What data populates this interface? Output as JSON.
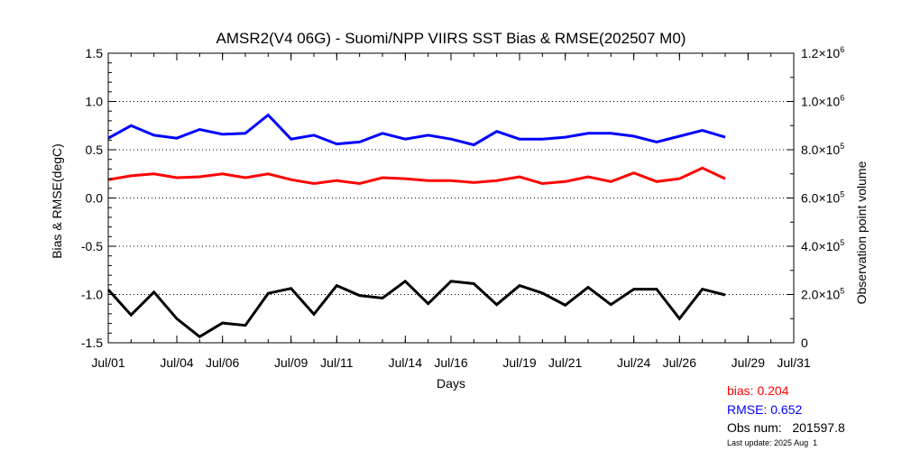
{
  "chart_data": {
    "type": "line",
    "title": "AMSR2(V4 06G) - Suomi/NPP VIIRS SST Bias & RMSE(202507 M0)",
    "xlabel": "Days",
    "ylabel": "Bias & RMSE(degC)",
    "y2label": "Observation point volume",
    "x_ticks": [
      "Jul/01",
      "Jul/04",
      "Jul/06",
      "Jul/09",
      "Jul/11",
      "Jul/14",
      "Jul/16",
      "Jul/19",
      "Jul/21",
      "Jul/24",
      "Jul/26",
      "Jul/29",
      "Jul/31"
    ],
    "x_days": [
      1,
      2,
      3,
      4,
      5,
      6,
      7,
      8,
      9,
      10,
      11,
      12,
      13,
      14,
      15,
      16,
      17,
      18,
      19,
      20,
      21,
      22,
      23,
      24,
      25,
      26,
      27,
      28
    ],
    "xlim": [
      1,
      31
    ],
    "ylim": [
      -1.5,
      1.5
    ],
    "y_ticks": [
      "1.5",
      "1.0",
      "0.5",
      "0.0",
      "-0.5",
      "-1.0",
      "-1.5"
    ],
    "y2lim": [
      0,
      1200000
    ],
    "y2_ticks": [
      {
        "mant": "0",
        "exp": ""
      },
      {
        "mant": "2.0×10",
        "exp": "5"
      },
      {
        "mant": "4.0×10",
        "exp": "5"
      },
      {
        "mant": "6.0×10",
        "exp": "5"
      },
      {
        "mant": "8.0×10",
        "exp": "5"
      },
      {
        "mant": "1.0×10",
        "exp": "6"
      },
      {
        "mant": "1.2×10",
        "exp": "6"
      }
    ],
    "grid": true,
    "series": [
      {
        "key": "rmse",
        "color": "#0000ff",
        "axis": "left",
        "values": [
          0.62,
          0.75,
          0.65,
          0.62,
          0.71,
          0.66,
          0.67,
          0.86,
          0.61,
          0.65,
          0.56,
          0.58,
          0.67,
          0.61,
          0.65,
          0.61,
          0.55,
          0.69,
          0.61,
          0.61,
          0.63,
          0.67,
          0.67,
          0.64,
          0.58,
          0.64,
          0.7,
          0.63
        ]
      },
      {
        "key": "bias",
        "color": "#ff0000",
        "axis": "left",
        "values": [
          0.19,
          0.23,
          0.25,
          0.21,
          0.22,
          0.25,
          0.21,
          0.25,
          0.19,
          0.15,
          0.18,
          0.15,
          0.21,
          0.2,
          0.18,
          0.18,
          0.16,
          0.18,
          0.22,
          0.15,
          0.17,
          0.22,
          0.17,
          0.26,
          0.17,
          0.2,
          0.31,
          0.2
        ]
      },
      {
        "key": "obs",
        "color": "#000000",
        "axis": "right",
        "values": [
          220000,
          115000,
          210000,
          100000,
          25000,
          82000,
          72000,
          205000,
          225000,
          118000,
          237000,
          196000,
          185000,
          255000,
          162000,
          255000,
          245000,
          158000,
          237000,
          206000,
          156000,
          230000,
          158000,
          222000,
          222000,
          100000,
          222000,
          198000
        ]
      }
    ]
  },
  "stats": {
    "bias": "bias: 0.204",
    "rmse": "RMSE: 0.652",
    "obs": "Obs num:   201597.8",
    "updated": "Last update: 2025 Aug  1"
  },
  "colors": {
    "bias": "#ff0000",
    "rmse": "#0000ff",
    "obs": "#000000",
    "grid": "#000000"
  }
}
